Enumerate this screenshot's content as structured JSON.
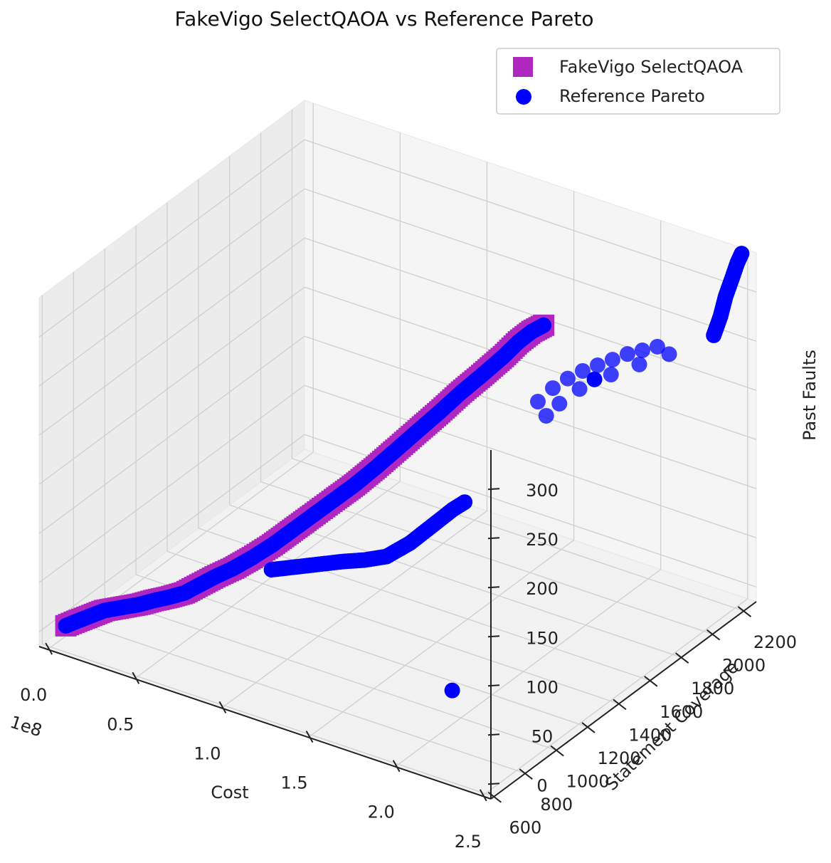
{
  "chart_data": {
    "type": "scatter",
    "projection": "3d",
    "title": "FakeVigo SelectQAOA vs Reference Pareto",
    "xlabel": "Cost",
    "ylabel": "Statement Coverage",
    "zlabel": "Past Faults",
    "x_offset_label": "1e8",
    "xlim": [
      -0.05,
      2.55
    ],
    "ylim": [
      580,
      2280
    ],
    "zlim": [
      -15,
      340
    ],
    "xticks": [
      "0.0",
      "0.5",
      "1.0",
      "1.5",
      "2.0",
      "2.5"
    ],
    "yticks": [
      "600",
      "800",
      "1000",
      "1200",
      "1400",
      "1600",
      "1800",
      "2000",
      "2200"
    ],
    "zticks": [
      "0",
      "50",
      "100",
      "150",
      "200",
      "250",
      "300"
    ],
    "grid": true,
    "legend_position": "top-right",
    "colors": {
      "selectqaoa": "#b026c0",
      "reference": "#0000ff"
    },
    "series": [
      {
        "name": "FakeVigo SelectQAOA",
        "marker": "square",
        "points": [
          [
            0.05,
            640,
            5
          ],
          [
            0.08,
            660,
            8
          ],
          [
            0.12,
            680,
            12
          ],
          [
            0.16,
            700,
            16
          ],
          [
            0.2,
            720,
            20
          ],
          [
            0.36,
            770,
            30
          ],
          [
            0.42,
            790,
            35
          ],
          [
            0.5,
            800,
            42
          ],
          [
            0.58,
            810,
            50
          ],
          [
            0.72,
            850,
            70
          ],
          [
            0.8,
            880,
            80
          ],
          [
            0.88,
            910,
            92
          ],
          [
            0.96,
            950,
            105
          ],
          [
            1.04,
            990,
            120
          ],
          [
            1.12,
            1030,
            135
          ],
          [
            1.2,
            1080,
            150
          ],
          [
            1.28,
            1120,
            165
          ],
          [
            1.36,
            1170,
            182
          ],
          [
            1.44,
            1220,
            200
          ],
          [
            1.52,
            1260,
            218
          ],
          [
            1.6,
            1310,
            236
          ],
          [
            1.68,
            1360,
            255
          ],
          [
            1.76,
            1400,
            272
          ],
          [
            1.84,
            1450,
            290
          ],
          [
            1.9,
            1480,
            305
          ],
          [
            1.95,
            1510,
            315
          ],
          [
            2.0,
            1530,
            322
          ]
        ]
      },
      {
        "name": "Reference Pareto",
        "marker": "circle",
        "points": [
          [
            0.05,
            640,
            5
          ],
          [
            0.08,
            660,
            8
          ],
          [
            0.12,
            680,
            12
          ],
          [
            0.16,
            700,
            16
          ],
          [
            0.2,
            720,
            20
          ],
          [
            0.36,
            770,
            30
          ],
          [
            0.42,
            790,
            35
          ],
          [
            0.5,
            800,
            42
          ],
          [
            0.58,
            810,
            50
          ],
          [
            0.72,
            850,
            70
          ],
          [
            0.8,
            880,
            80
          ],
          [
            0.88,
            910,
            92
          ],
          [
            0.96,
            950,
            105
          ],
          [
            1.04,
            990,
            120
          ],
          [
            1.12,
            1030,
            135
          ],
          [
            1.2,
            1080,
            150
          ],
          [
            1.28,
            1120,
            165
          ],
          [
            1.36,
            1170,
            182
          ],
          [
            1.44,
            1220,
            200
          ],
          [
            1.52,
            1260,
            218
          ],
          [
            1.6,
            1310,
            236
          ],
          [
            1.68,
            1360,
            255
          ],
          [
            1.76,
            1400,
            272
          ],
          [
            1.84,
            1450,
            290
          ],
          [
            1.9,
            1480,
            305
          ],
          [
            1.95,
            1510,
            315
          ],
          [
            2.0,
            1530,
            322
          ],
          [
            1.0,
            900,
            88
          ],
          [
            1.1,
            940,
            92
          ],
          [
            1.2,
            980,
            96
          ],
          [
            1.3,
            1020,
            100
          ],
          [
            1.4,
            1050,
            104
          ],
          [
            1.5,
            1080,
            110
          ],
          [
            1.6,
            1120,
            125
          ],
          [
            1.7,
            1150,
            145
          ],
          [
            1.8,
            1170,
            165
          ],
          [
            1.86,
            1180,
            175
          ],
          [
            1.95,
            1000,
            10
          ],
          [
            1.85,
            1660,
            220
          ],
          [
            1.9,
            1700,
            232
          ],
          [
            1.95,
            1740,
            240
          ],
          [
            2.0,
            1780,
            246
          ],
          [
            2.05,
            1820,
            250
          ],
          [
            2.1,
            1860,
            254
          ],
          [
            2.15,
            1900,
            258
          ],
          [
            2.2,
            1940,
            260
          ],
          [
            2.25,
            1980,
            262
          ],
          [
            1.88,
            1680,
            205
          ],
          [
            2.0,
            1760,
            230
          ],
          [
            2.1,
            1850,
            240
          ],
          [
            2.2,
            1920,
            248
          ],
          [
            2.3,
            2000,
            255
          ],
          [
            1.92,
            1720,
            215
          ],
          [
            2.05,
            1800,
            238
          ],
          [
            2.35,
            2230,
            250
          ],
          [
            2.38,
            2240,
            270
          ],
          [
            2.4,
            2250,
            290
          ],
          [
            2.43,
            2260,
            310
          ],
          [
            2.45,
            2270,
            325
          ],
          [
            2.47,
            2275,
            335
          ]
        ]
      }
    ]
  }
}
